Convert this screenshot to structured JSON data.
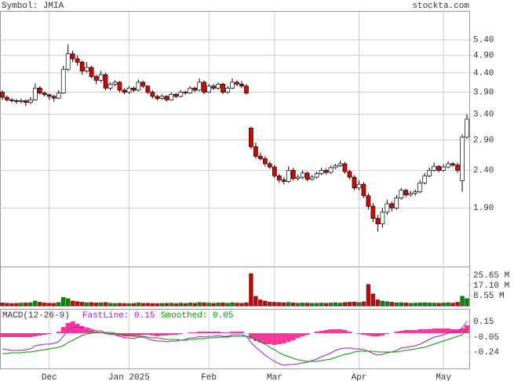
{
  "header": {
    "symbol": "Symbol: JMIA",
    "source": "stockta.com"
  },
  "chart_data": [
    {
      "type": "candlestick",
      "log_scale": true,
      "grid": true,
      "up_color": "#ffffff",
      "down_color": "#dd0000",
      "categories": [
        null,
        null,
        null,
        null,
        null,
        null,
        null,
        null,
        null,
        null,
        "Dec",
        null,
        null,
        null,
        null,
        null,
        null,
        null,
        null,
        null,
        null,
        null,
        null,
        null,
        null,
        null,
        null,
        "Jan 2025",
        null,
        null,
        null,
        null,
        null,
        null,
        null,
        null,
        null,
        null,
        null,
        null,
        null,
        null,
        null,
        null,
        "Feb",
        null,
        null,
        null,
        null,
        null,
        null,
        null,
        null,
        null,
        null,
        null,
        null,
        null,
        "Mar",
        null,
        null,
        null,
        null,
        null,
        null,
        null,
        null,
        null,
        null,
        null,
        null,
        null,
        null,
        null,
        null,
        null,
        "Apr",
        null,
        null,
        null,
        null,
        null,
        null,
        null,
        null,
        null,
        null,
        null,
        null,
        null,
        null,
        null,
        null,
        null,
        "May",
        null,
        null,
        null,
        null,
        null
      ],
      "ohlc": [
        [
          3.9,
          3.95,
          3.72,
          3.78
        ],
        [
          3.78,
          3.82,
          3.68,
          3.72
        ],
        [
          3.72,
          3.76,
          3.66,
          3.7
        ],
        [
          3.7,
          3.74,
          3.63,
          3.68
        ],
        [
          3.68,
          3.75,
          3.64,
          3.7
        ],
        [
          3.7,
          3.73,
          3.58,
          3.66
        ],
        [
          3.66,
          3.78,
          3.62,
          3.72
        ],
        [
          3.72,
          4.12,
          3.7,
          4.0
        ],
        [
          4.0,
          4.05,
          3.84,
          3.88
        ],
        [
          3.88,
          3.92,
          3.8,
          3.84
        ],
        [
          3.84,
          3.86,
          3.72,
          3.8
        ],
        [
          3.8,
          3.84,
          3.68,
          3.76
        ],
        [
          3.76,
          3.95,
          3.74,
          3.88
        ],
        [
          3.88,
          4.6,
          3.86,
          4.5
        ],
        [
          4.5,
          5.25,
          4.45,
          4.95
        ],
        [
          4.95,
          5.05,
          4.7,
          4.8
        ],
        [
          4.8,
          4.9,
          4.6,
          4.7
        ],
        [
          4.7,
          4.75,
          4.35,
          4.45
        ],
        [
          4.45,
          4.7,
          4.4,
          4.55
        ],
        [
          4.55,
          4.6,
          4.25,
          4.3
        ],
        [
          4.3,
          4.35,
          4.1,
          4.2
        ],
        [
          4.2,
          4.45,
          4.15,
          4.35
        ],
        [
          4.35,
          4.4,
          3.95,
          4.0
        ],
        [
          4.0,
          4.15,
          3.95,
          4.1
        ],
        [
          4.1,
          4.2,
          4.05,
          4.15
        ],
        [
          4.15,
          4.18,
          3.9,
          3.95
        ],
        [
          3.95,
          4.0,
          3.85,
          3.9
        ],
        [
          3.9,
          4.05,
          3.86,
          4.0
        ],
        [
          4.0,
          4.04,
          3.9,
          3.95
        ],
        [
          3.95,
          4.22,
          3.92,
          4.15
        ],
        [
          4.15,
          4.18,
          4.0,
          4.05
        ],
        [
          4.05,
          4.08,
          3.85,
          3.9
        ],
        [
          3.9,
          3.95,
          3.75,
          3.8
        ],
        [
          3.8,
          3.84,
          3.7,
          3.75
        ],
        [
          3.75,
          3.85,
          3.72,
          3.8
        ],
        [
          3.8,
          3.83,
          3.68,
          3.72
        ],
        [
          3.72,
          3.9,
          3.7,
          3.85
        ],
        [
          3.85,
          3.88,
          3.76,
          3.8
        ],
        [
          3.8,
          3.95,
          3.78,
          3.9
        ],
        [
          3.9,
          3.94,
          3.84,
          3.88
        ],
        [
          3.88,
          4.05,
          3.86,
          4.0
        ],
        [
          4.0,
          4.04,
          3.9,
          3.95
        ],
        [
          3.95,
          4.25,
          3.92,
          4.15
        ],
        [
          4.15,
          4.2,
          3.85,
          3.9
        ],
        [
          3.9,
          4.1,
          3.88,
          4.05
        ],
        [
          4.05,
          4.1,
          3.95,
          4.0
        ],
        [
          4.0,
          4.15,
          3.96,
          4.1
        ],
        [
          4.1,
          4.14,
          3.85,
          3.9
        ],
        [
          3.9,
          4.05,
          3.86,
          4.0
        ],
        [
          4.0,
          4.25,
          3.98,
          4.15
        ],
        [
          4.15,
          4.2,
          4.05,
          4.1
        ],
        [
          4.1,
          4.18,
          4.0,
          4.05
        ],
        [
          4.05,
          4.1,
          3.84,
          3.88
        ],
        [
          3.12,
          3.15,
          2.74,
          2.78
        ],
        [
          2.78,
          2.85,
          2.58,
          2.62
        ],
        [
          2.62,
          2.68,
          2.55,
          2.58
        ],
        [
          2.58,
          2.62,
          2.46,
          2.5
        ],
        [
          2.5,
          2.54,
          2.42,
          2.45
        ],
        [
          2.45,
          2.48,
          2.29,
          2.32
        ],
        [
          2.32,
          2.35,
          2.22,
          2.26
        ],
        [
          2.26,
          2.3,
          2.2,
          2.24
        ],
        [
          2.24,
          2.46,
          2.22,
          2.4
        ],
        [
          2.4,
          2.44,
          2.25,
          2.28
        ],
        [
          2.28,
          2.34,
          2.25,
          2.3
        ],
        [
          2.3,
          2.4,
          2.27,
          2.36
        ],
        [
          2.36,
          2.38,
          2.24,
          2.27
        ],
        [
          2.27,
          2.33,
          2.25,
          2.3
        ],
        [
          2.3,
          2.38,
          2.28,
          2.35
        ],
        [
          2.35,
          2.44,
          2.33,
          2.4
        ],
        [
          2.4,
          2.43,
          2.34,
          2.37
        ],
        [
          2.37,
          2.47,
          2.35,
          2.44
        ],
        [
          2.44,
          2.5,
          2.42,
          2.47
        ],
        [
          2.47,
          2.55,
          2.45,
          2.5
        ],
        [
          2.5,
          2.53,
          2.35,
          2.38
        ],
        [
          2.38,
          2.41,
          2.27,
          2.3
        ],
        [
          2.3,
          2.33,
          2.12,
          2.15
        ],
        [
          2.15,
          2.25,
          2.12,
          2.2
        ],
        [
          2.2,
          2.23,
          2.02,
          2.05
        ],
        [
          2.05,
          2.08,
          1.88,
          1.92
        ],
        [
          1.92,
          1.96,
          1.74,
          1.78
        ],
        [
          1.78,
          1.82,
          1.64,
          1.72
        ],
        [
          1.72,
          1.9,
          1.68,
          1.85
        ],
        [
          1.85,
          2.0,
          1.82,
          1.95
        ],
        [
          1.95,
          1.98,
          1.86,
          1.9
        ],
        [
          1.9,
          2.06,
          1.88,
          2.02
        ],
        [
          2.02,
          2.15,
          2.0,
          2.12
        ],
        [
          2.12,
          2.14,
          2.03,
          2.06
        ],
        [
          2.06,
          2.11,
          2.04,
          2.08
        ],
        [
          2.08,
          2.13,
          2.05,
          2.1
        ],
        [
          2.1,
          2.26,
          2.08,
          2.22
        ],
        [
          2.22,
          2.36,
          2.2,
          2.32
        ],
        [
          2.32,
          2.44,
          2.3,
          2.4
        ],
        [
          2.4,
          2.52,
          2.38,
          2.46
        ],
        [
          2.46,
          2.48,
          2.37,
          2.4
        ],
        [
          2.4,
          2.49,
          2.38,
          2.45
        ],
        [
          2.45,
          2.54,
          2.43,
          2.5
        ],
        [
          2.5,
          2.53,
          2.45,
          2.48
        ],
        [
          2.48,
          2.52,
          2.36,
          2.4
        ],
        [
          2.25,
          3.0,
          2.1,
          2.95
        ],
        [
          2.95,
          3.4,
          2.92,
          3.3
        ]
      ],
      "ylim": [
        1.32,
        6.43
      ],
      "yticks": [
        {
          "value": 5.4,
          "label": "5.40"
        },
        {
          "value": 4.9,
          "label": "4.90"
        },
        {
          "value": 4.4,
          "label": "4.40"
        },
        {
          "value": 3.9,
          "label": "3.90"
        },
        {
          "value": 3.4,
          "label": "3.40"
        },
        {
          "value": 2.9,
          "label": "2.90"
        },
        {
          "value": 2.4,
          "label": "2.40"
        },
        {
          "value": 1.9,
          "label": "1.90"
        }
      ]
    },
    {
      "type": "volume",
      "up_color": "#008800",
      "down_color": "#cc0000",
      "values": [
        2.5,
        2.2,
        2,
        2.1,
        2.3,
        2.4,
        2.6,
        4,
        3,
        2.4,
        2.2,
        2.1,
        2.8,
        7,
        6,
        4,
        3.5,
        3,
        2.6,
        2.8,
        2.4,
        2.6,
        2.8,
        2.2,
        2,
        2.1,
        2,
        1.9,
        2,
        2.5,
        2.1,
        2.2,
        2,
        1.9,
        2,
        2.1,
        2.2,
        1.9,
        2.3,
        2,
        2.4,
        2.2,
        2.8,
        2.6,
        2.3,
        2.1,
        2.4,
        2.5,
        2.2,
        2.6,
        2.3,
        2.2,
        2.6,
        27,
        8,
        5,
        4,
        3.2,
        3,
        2.8,
        2.6,
        2.9,
        2.5,
        2.2,
        2.4,
        2.3,
        2.1,
        2.2,
        2.3,
        2.1,
        2.4,
        2.6,
        2.3,
        2.8,
        3,
        3.2,
        2.8,
        3.4,
        18,
        10,
        5,
        4,
        3.4,
        3,
        2.6,
        2.7,
        2.4,
        2.2,
        2.3,
        2.5,
        2.6,
        2.4,
        2.3,
        2.2,
        2.4,
        2.6,
        2.3,
        3,
        8,
        6
      ],
      "ylim": [
        0,
        32.2
      ],
      "yticks": [
        {
          "value": 25.65,
          "label": "25.65 M"
        },
        {
          "value": 17.1,
          "label": "17.10 M"
        },
        {
          "value": 8.55,
          "label": "8.55 M"
        }
      ]
    },
    {
      "type": "macd",
      "title": "MACD(12-26-9)",
      "histogram_color": "#ff3399",
      "histogram": [
        -0.05,
        -0.05,
        -0.05,
        -0.05,
        -0.05,
        -0.05,
        -0.05,
        -0.04,
        -0.03,
        -0.02,
        -0.01,
        0,
        0.02,
        0.08,
        0.13,
        0.15,
        0.12,
        0.09,
        0.06,
        0.04,
        0.02,
        0.01,
        -0.01,
        -0.02,
        -0.02,
        -0.03,
        -0.04,
        -0.04,
        -0.04,
        -0.03,
        -0.02,
        -0.02,
        -0.03,
        -0.04,
        -0.03,
        -0.03,
        -0.02,
        -0.02,
        -0.01,
        0,
        0.01,
        0.01,
        0.02,
        0.02,
        0.02,
        0.02,
        0.02,
        0.01,
        0.01,
        0.02,
        0.02,
        0.02,
        0,
        -0.07,
        -0.1,
        -0.12,
        -0.14,
        -0.14,
        -0.15,
        -0.14,
        -0.13,
        -0.11,
        -0.09,
        -0.06,
        -0.04,
        -0.02,
        0,
        0.02,
        0.03,
        0.04,
        0.05,
        0.05,
        0.05,
        0.04,
        0.02,
        0,
        -0.01,
        -0.02,
        -0.03,
        -0.04,
        -0.04,
        -0.03,
        -0.01,
        0,
        0.02,
        0.03,
        0.04,
        0.04,
        0.04,
        0.05,
        0.05,
        0.05,
        0.06,
        0.06,
        0.06,
        0.06,
        0.05,
        0.05,
        0.06,
        0.1
      ],
      "series": [
        {
          "name": "FastLine: 0.15",
          "color": "#a020c0",
          "values": [
            -0.2,
            -0.21,
            -0.22,
            -0.22,
            -0.22,
            -0.21,
            -0.2,
            -0.16,
            -0.15,
            -0.14,
            -0.14,
            -0.13,
            -0.11,
            -0.04,
            0.04,
            0.07,
            0.08,
            0.07,
            0.07,
            0.05,
            0.03,
            0.03,
            0,
            -0.01,
            -0.02,
            -0.04,
            -0.06,
            -0.06,
            -0.07,
            -0.05,
            -0.05,
            -0.07,
            -0.09,
            -0.1,
            -0.1,
            -0.11,
            -0.1,
            -0.1,
            -0.09,
            -0.08,
            -0.06,
            -0.06,
            -0.04,
            -0.05,
            -0.04,
            -0.04,
            -0.03,
            -0.04,
            -0.04,
            -0.02,
            -0.02,
            -0.02,
            -0.04,
            -0.12,
            -0.18,
            -0.23,
            -0.28,
            -0.32,
            -0.36,
            -0.39,
            -0.41,
            -0.4,
            -0.4,
            -0.39,
            -0.38,
            -0.37,
            -0.35,
            -0.33,
            -0.3,
            -0.28,
            -0.25,
            -0.22,
            -0.2,
            -0.19,
            -0.19,
            -0.2,
            -0.2,
            -0.21,
            -0.23,
            -0.26,
            -0.28,
            -0.27,
            -0.25,
            -0.24,
            -0.22,
            -0.19,
            -0.18,
            -0.17,
            -0.16,
            -0.14,
            -0.11,
            -0.08,
            -0.05,
            -0.04,
            -0.02,
            0,
            0.01,
            0.01,
            0.07,
            0.15
          ]
        },
        {
          "name": "Smoothed: 0.05",
          "color": "#009900",
          "values": [
            -0.26,
            -0.26,
            -0.25,
            -0.25,
            -0.25,
            -0.24,
            -0.24,
            -0.23,
            -0.22,
            -0.21,
            -0.2,
            -0.19,
            -0.18,
            -0.16,
            -0.12,
            -0.09,
            -0.06,
            -0.03,
            -0.01,
            0,
            0.01,
            0.01,
            0.01,
            0.01,
            0,
            -0.01,
            -0.02,
            -0.03,
            -0.04,
            -0.04,
            -0.04,
            -0.05,
            -0.06,
            -0.06,
            -0.07,
            -0.08,
            -0.08,
            -0.08,
            -0.09,
            -0.09,
            -0.08,
            -0.08,
            -0.07,
            -0.07,
            -0.06,
            -0.06,
            -0.05,
            -0.05,
            -0.05,
            -0.04,
            -0.04,
            -0.04,
            -0.04,
            -0.05,
            -0.08,
            -0.11,
            -0.14,
            -0.18,
            -0.21,
            -0.25,
            -0.28,
            -0.3,
            -0.32,
            -0.34,
            -0.35,
            -0.36,
            -0.36,
            -0.36,
            -0.35,
            -0.34,
            -0.33,
            -0.31,
            -0.29,
            -0.27,
            -0.26,
            -0.24,
            -0.23,
            -0.23,
            -0.23,
            -0.23,
            -0.24,
            -0.24,
            -0.24,
            -0.24,
            -0.24,
            -0.23,
            -0.22,
            -0.21,
            -0.2,
            -0.19,
            -0.18,
            -0.16,
            -0.14,
            -0.12,
            -0.1,
            -0.08,
            -0.06,
            -0.04,
            -0.02,
            0.05
          ]
        }
      ],
      "ylim": [
        -0.45,
        0.3
      ],
      "yticks": [
        0.15,
        -0.05,
        -0.24
      ]
    }
  ]
}
